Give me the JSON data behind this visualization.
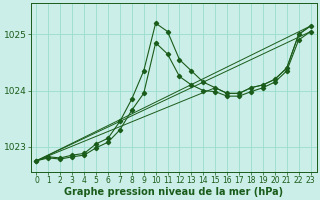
{
  "bg_color": "#cceee8",
  "grid_color": "#99ddcc",
  "line_color": "#1a5c1a",
  "xlabel": "Graphe pression niveau de la mer (hPa)",
  "xlabel_fontsize": 7,
  "tick_fontsize": 5.5,
  "xlim": [
    -0.5,
    23.5
  ],
  "ylim": [
    1022.55,
    1025.55
  ],
  "yticks": [
    1023,
    1024,
    1025
  ],
  "xticks": [
    0,
    1,
    2,
    3,
    4,
    5,
    6,
    7,
    8,
    9,
    10,
    11,
    12,
    13,
    14,
    15,
    16,
    17,
    18,
    19,
    20,
    21,
    22,
    23
  ],
  "line_main": {
    "x": [
      0,
      1,
      2,
      3,
      4,
      5,
      6,
      7,
      8,
      9,
      10,
      11,
      12,
      13,
      14,
      15,
      16,
      17,
      18,
      19,
      20,
      21,
      22,
      23
    ],
    "y": [
      1022.75,
      1022.82,
      1022.8,
      1022.85,
      1022.88,
      1023.05,
      1023.15,
      1023.45,
      1023.85,
      1024.35,
      1025.2,
      1025.05,
      1024.55,
      1024.35,
      1024.15,
      1024.05,
      1023.95,
      1023.95,
      1024.05,
      1024.1,
      1024.2,
      1024.4,
      1025.0,
      1025.15
    ]
  },
  "line2": {
    "x": [
      0,
      1,
      2,
      3,
      4,
      5,
      6,
      7,
      8,
      9,
      10,
      11,
      12,
      13,
      14,
      15,
      16,
      17,
      18,
      19,
      20,
      21,
      22,
      23
    ],
    "y": [
      1022.75,
      1022.8,
      1022.78,
      1022.82,
      1022.85,
      1022.98,
      1023.08,
      1023.3,
      1023.65,
      1023.95,
      1024.85,
      1024.65,
      1024.25,
      1024.1,
      1024.0,
      1023.98,
      1023.9,
      1023.9,
      1023.98,
      1024.05,
      1024.15,
      1024.35,
      1024.9,
      1025.05
    ]
  },
  "diag1": {
    "x": [
      0,
      23
    ],
    "y": [
      1022.75,
      1025.15
    ]
  },
  "diag2": {
    "x": [
      0,
      23
    ],
    "y": [
      1022.75,
      1025.05
    ]
  },
  "diag3": {
    "x": [
      0,
      15,
      16,
      17,
      18,
      19,
      20,
      21,
      22,
      23
    ],
    "y": [
      1022.75,
      1024.05,
      1023.95,
      1023.95,
      1024.05,
      1024.1,
      1024.2,
      1024.4,
      1025.0,
      1025.15
    ]
  }
}
